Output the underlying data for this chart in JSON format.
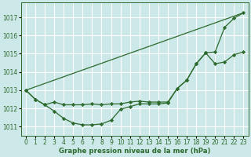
{
  "bg_color": "#cce8e8",
  "grid_color": "#ffffff",
  "line_color": "#2d6a2d",
  "marker_color": "#2d6a2d",
  "title": "Graphe pression niveau de la mer (hPa)",
  "xlim": [
    -0.5,
    23.5
  ],
  "ylim": [
    1010.5,
    1017.8
  ],
  "yticks": [
    1011,
    1012,
    1013,
    1014,
    1015,
    1016,
    1017
  ],
  "xticks": [
    0,
    1,
    2,
    3,
    4,
    5,
    6,
    7,
    8,
    9,
    10,
    11,
    12,
    13,
    14,
    15,
    16,
    17,
    18,
    19,
    20,
    21,
    22,
    23
  ],
  "series1_x": [
    0,
    1,
    2,
    3,
    4,
    5,
    6,
    7,
    8,
    9,
    10,
    11,
    12,
    13,
    14,
    15,
    16,
    17,
    18,
    19,
    20,
    21,
    22,
    23
  ],
  "series1_y": [
    1013.0,
    1012.5,
    1012.2,
    1011.85,
    1011.45,
    1011.2,
    1011.1,
    1011.1,
    1011.15,
    1011.35,
    1011.95,
    1012.1,
    1012.25,
    1012.25,
    1012.25,
    1012.3,
    1013.1,
    1013.55,
    1014.45,
    1015.05,
    1015.1,
    1016.45,
    1016.95,
    1017.25
  ],
  "series2_x": [
    0,
    1,
    2,
    3,
    4,
    5,
    6,
    7,
    8,
    9,
    10,
    11,
    12,
    13,
    14,
    15,
    16,
    17,
    18,
    19,
    20,
    21,
    22,
    23
  ],
  "series2_y": [
    1013.0,
    1012.5,
    1012.2,
    1012.35,
    1012.2,
    1012.2,
    1012.2,
    1012.25,
    1012.2,
    1012.25,
    1012.25,
    1012.35,
    1012.4,
    1012.35,
    1012.35,
    1012.35,
    1013.1,
    1013.55,
    1014.45,
    1015.05,
    1014.45,
    1014.55,
    1014.95,
    1015.1
  ],
  "series3_x": [
    0,
    23
  ],
  "series3_y": [
    1013.0,
    1017.25
  ]
}
